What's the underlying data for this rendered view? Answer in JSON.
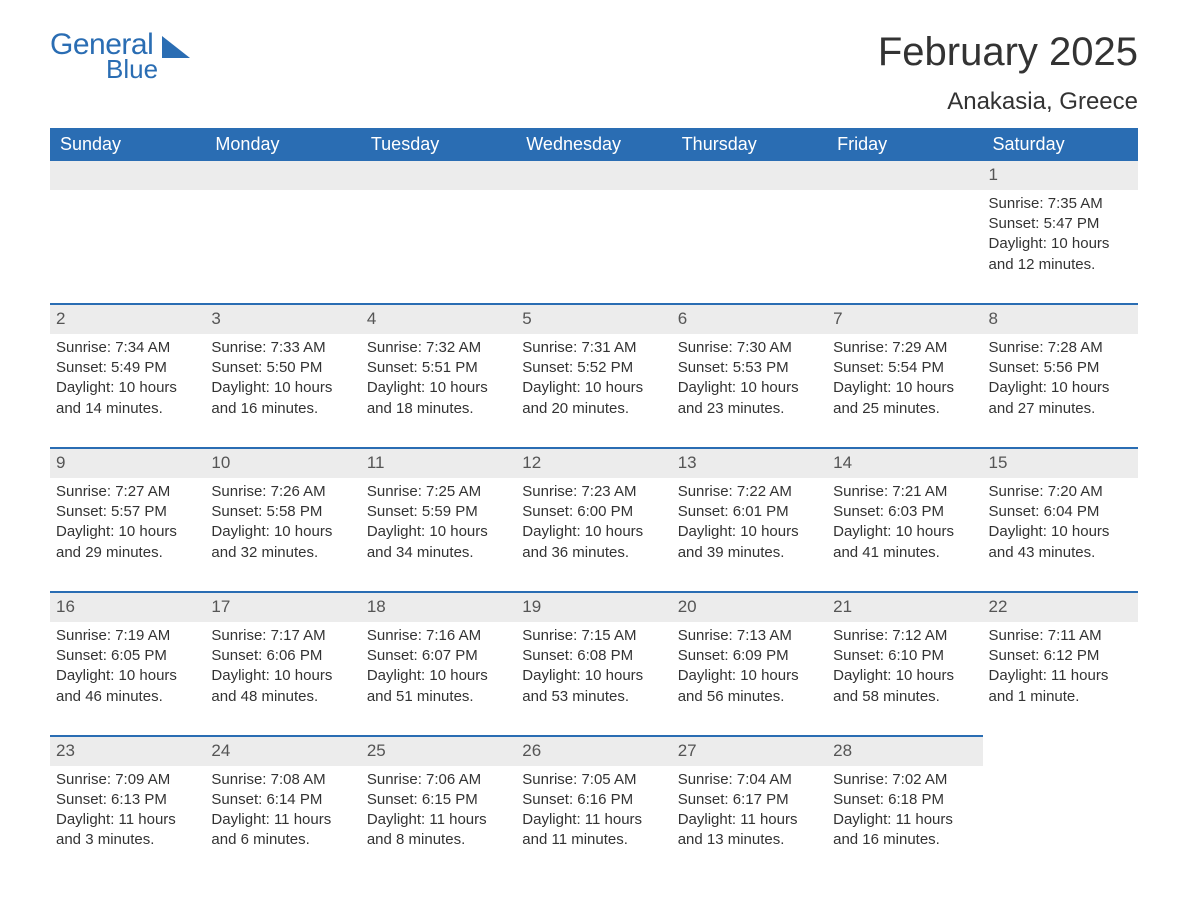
{
  "logo": {
    "general": "General",
    "blue": "Blue",
    "color": "#2a6db3"
  },
  "title": "February 2025",
  "location": "Anakasia, Greece",
  "colors": {
    "header_bg": "#2a6db3",
    "header_text": "#ffffff",
    "daybar_bg": "#ececec",
    "daybar_border": "#2a6db3",
    "body_text": "#333333",
    "background": "#ffffff"
  },
  "day_headers": [
    "Sunday",
    "Monday",
    "Tuesday",
    "Wednesday",
    "Thursday",
    "Friday",
    "Saturday"
  ],
  "weeks": [
    [
      null,
      null,
      null,
      null,
      null,
      null,
      {
        "num": "1",
        "sunrise": "Sunrise: 7:35 AM",
        "sunset": "Sunset: 5:47 PM",
        "daylight": "Daylight: 10 hours and 12 minutes."
      }
    ],
    [
      {
        "num": "2",
        "sunrise": "Sunrise: 7:34 AM",
        "sunset": "Sunset: 5:49 PM",
        "daylight": "Daylight: 10 hours and 14 minutes."
      },
      {
        "num": "3",
        "sunrise": "Sunrise: 7:33 AM",
        "sunset": "Sunset: 5:50 PM",
        "daylight": "Daylight: 10 hours and 16 minutes."
      },
      {
        "num": "4",
        "sunrise": "Sunrise: 7:32 AM",
        "sunset": "Sunset: 5:51 PM",
        "daylight": "Daylight: 10 hours and 18 minutes."
      },
      {
        "num": "5",
        "sunrise": "Sunrise: 7:31 AM",
        "sunset": "Sunset: 5:52 PM",
        "daylight": "Daylight: 10 hours and 20 minutes."
      },
      {
        "num": "6",
        "sunrise": "Sunrise: 7:30 AM",
        "sunset": "Sunset: 5:53 PM",
        "daylight": "Daylight: 10 hours and 23 minutes."
      },
      {
        "num": "7",
        "sunrise": "Sunrise: 7:29 AM",
        "sunset": "Sunset: 5:54 PM",
        "daylight": "Daylight: 10 hours and 25 minutes."
      },
      {
        "num": "8",
        "sunrise": "Sunrise: 7:28 AM",
        "sunset": "Sunset: 5:56 PM",
        "daylight": "Daylight: 10 hours and 27 minutes."
      }
    ],
    [
      {
        "num": "9",
        "sunrise": "Sunrise: 7:27 AM",
        "sunset": "Sunset: 5:57 PM",
        "daylight": "Daylight: 10 hours and 29 minutes."
      },
      {
        "num": "10",
        "sunrise": "Sunrise: 7:26 AM",
        "sunset": "Sunset: 5:58 PM",
        "daylight": "Daylight: 10 hours and 32 minutes."
      },
      {
        "num": "11",
        "sunrise": "Sunrise: 7:25 AM",
        "sunset": "Sunset: 5:59 PM",
        "daylight": "Daylight: 10 hours and 34 minutes."
      },
      {
        "num": "12",
        "sunrise": "Sunrise: 7:23 AM",
        "sunset": "Sunset: 6:00 PM",
        "daylight": "Daylight: 10 hours and 36 minutes."
      },
      {
        "num": "13",
        "sunrise": "Sunrise: 7:22 AM",
        "sunset": "Sunset: 6:01 PM",
        "daylight": "Daylight: 10 hours and 39 minutes."
      },
      {
        "num": "14",
        "sunrise": "Sunrise: 7:21 AM",
        "sunset": "Sunset: 6:03 PM",
        "daylight": "Daylight: 10 hours and 41 minutes."
      },
      {
        "num": "15",
        "sunrise": "Sunrise: 7:20 AM",
        "sunset": "Sunset: 6:04 PM",
        "daylight": "Daylight: 10 hours and 43 minutes."
      }
    ],
    [
      {
        "num": "16",
        "sunrise": "Sunrise: 7:19 AM",
        "sunset": "Sunset: 6:05 PM",
        "daylight": "Daylight: 10 hours and 46 minutes."
      },
      {
        "num": "17",
        "sunrise": "Sunrise: 7:17 AM",
        "sunset": "Sunset: 6:06 PM",
        "daylight": "Daylight: 10 hours and 48 minutes."
      },
      {
        "num": "18",
        "sunrise": "Sunrise: 7:16 AM",
        "sunset": "Sunset: 6:07 PM",
        "daylight": "Daylight: 10 hours and 51 minutes."
      },
      {
        "num": "19",
        "sunrise": "Sunrise: 7:15 AM",
        "sunset": "Sunset: 6:08 PM",
        "daylight": "Daylight: 10 hours and 53 minutes."
      },
      {
        "num": "20",
        "sunrise": "Sunrise: 7:13 AM",
        "sunset": "Sunset: 6:09 PM",
        "daylight": "Daylight: 10 hours and 56 minutes."
      },
      {
        "num": "21",
        "sunrise": "Sunrise: 7:12 AM",
        "sunset": "Sunset: 6:10 PM",
        "daylight": "Daylight: 10 hours and 58 minutes."
      },
      {
        "num": "22",
        "sunrise": "Sunrise: 7:11 AM",
        "sunset": "Sunset: 6:12 PM",
        "daylight": "Daylight: 11 hours and 1 minute."
      }
    ],
    [
      {
        "num": "23",
        "sunrise": "Sunrise: 7:09 AM",
        "sunset": "Sunset: 6:13 PM",
        "daylight": "Daylight: 11 hours and 3 minutes."
      },
      {
        "num": "24",
        "sunrise": "Sunrise: 7:08 AM",
        "sunset": "Sunset: 6:14 PM",
        "daylight": "Daylight: 11 hours and 6 minutes."
      },
      {
        "num": "25",
        "sunrise": "Sunrise: 7:06 AM",
        "sunset": "Sunset: 6:15 PM",
        "daylight": "Daylight: 11 hours and 8 minutes."
      },
      {
        "num": "26",
        "sunrise": "Sunrise: 7:05 AM",
        "sunset": "Sunset: 6:16 PM",
        "daylight": "Daylight: 11 hours and 11 minutes."
      },
      {
        "num": "27",
        "sunrise": "Sunrise: 7:04 AM",
        "sunset": "Sunset: 6:17 PM",
        "daylight": "Daylight: 11 hours and 13 minutes."
      },
      {
        "num": "28",
        "sunrise": "Sunrise: 7:02 AM",
        "sunset": "Sunset: 6:18 PM",
        "daylight": "Daylight: 11 hours and 16 minutes."
      },
      null
    ]
  ]
}
